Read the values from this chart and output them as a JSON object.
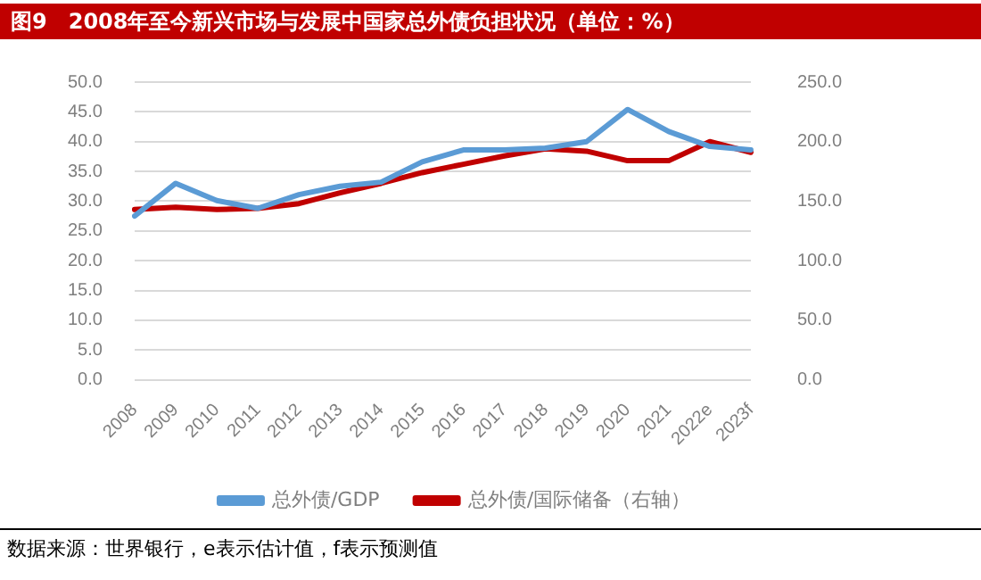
{
  "chart_data": {
    "type": "line",
    "title": "图9　2008年至今新兴市场与发展中国家总外债负担状况（单位：%）",
    "categories": [
      "2008",
      "2009",
      "2010",
      "2011",
      "2012",
      "2013",
      "2014",
      "2015",
      "2016",
      "2017",
      "2018",
      "2019",
      "2020",
      "2021",
      "2022e",
      "2023f"
    ],
    "series": [
      {
        "name": "总外债/GDP",
        "color": "#5b9bd5",
        "values": [
          27.5,
          33.0,
          30.1,
          28.8,
          31.1,
          32.5,
          33.2,
          36.6,
          38.6,
          38.6,
          38.9,
          40.0,
          45.4,
          41.7,
          39.2,
          38.6
        ]
      },
      {
        "name": "总外债/国际储备（右轴）",
        "color": "#c00000",
        "axis": "y2",
        "values": [
          143,
          145,
          143,
          144,
          148,
          157,
          165,
          174,
          181,
          188,
          194,
          192,
          184,
          184,
          200,
          191
        ]
      }
    ],
    "ylim": [
      0,
      50
    ],
    "yticks": [
      {
        "value": 0,
        "label": "0.0"
      },
      {
        "value": 5,
        "label": "5.0"
      },
      {
        "value": 10,
        "label": "10.0"
      },
      {
        "value": 15,
        "label": "15.0"
      },
      {
        "value": 20,
        "label": "20.0"
      },
      {
        "value": 25,
        "label": "25.0"
      },
      {
        "value": 30,
        "label": "30.0"
      },
      {
        "value": 35,
        "label": "35.0"
      },
      {
        "value": 40,
        "label": "40.0"
      },
      {
        "value": 45,
        "label": "45.0"
      },
      {
        "value": 50,
        "label": "50.0"
      }
    ],
    "y2lim": [
      0,
      250
    ],
    "y2ticks": [
      {
        "value": 0,
        "label": "0.0"
      },
      {
        "value": 50,
        "label": "50.0"
      },
      {
        "value": 100,
        "label": "100.0"
      },
      {
        "value": 150,
        "label": "150.0"
      },
      {
        "value": 200,
        "label": "200.0"
      },
      {
        "value": 250,
        "label": "250.0"
      }
    ],
    "grid": "y",
    "legend": "bottom",
    "marker": "none",
    "line_style": "solid",
    "annotations": [
      "数据来源：世界银行，e表示估计值，f表示预测值"
    ]
  }
}
